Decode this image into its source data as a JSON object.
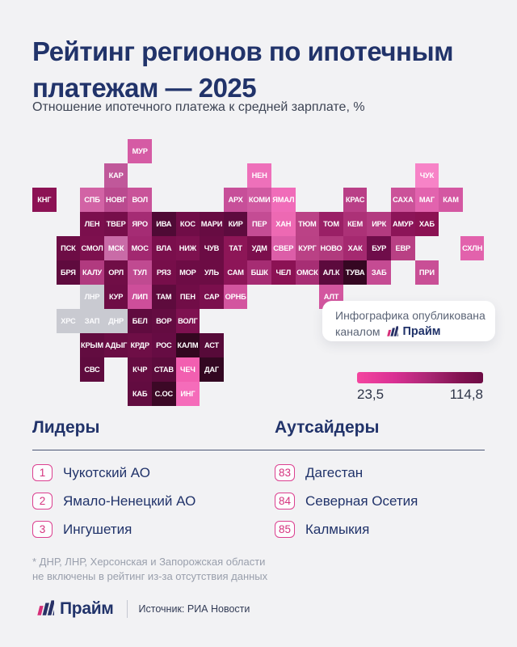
{
  "header": {
    "title_line1": "Рейтинг регионов по ипотечным",
    "title_line2": "платежам — 2025",
    "subtitle": "Отношение ипотечного платежа к средней зарплате, %"
  },
  "publisher": {
    "line1": "Инфографика опубликована",
    "line2_prefix": "каналом",
    "brand": "Прайм"
  },
  "chart_data": {
    "type": "heatmap",
    "title": "Рейтинг регионов по ипотечным платежам — 2025",
    "metric": "Отношение ипотечного платежа к средней зарплате, %",
    "scale": {
      "min": 23.5,
      "max": 114.8,
      "min_label": "23,5",
      "max_label": "114,8",
      "gradient_left": "#f4459f",
      "gradient_right": "#6d0c44"
    },
    "excluded_color": "#c9cad1",
    "tiles": [
      {
        "label": "МУР",
        "row": 0,
        "col": 4,
        "color": "#d55ba4"
      },
      {
        "label": "КАР",
        "row": 1,
        "col": 3,
        "color": "#c0589a"
      },
      {
        "label": "НЕН",
        "row": 1,
        "col": 9,
        "color": "#ee70ba"
      },
      {
        "label": "ЧУК",
        "row": 1,
        "col": 16,
        "color": "#f783c7"
      },
      {
        "label": "КНГ",
        "row": 2,
        "col": 0,
        "color": "#8c1254"
      },
      {
        "label": "СПБ",
        "row": 2,
        "col": 2,
        "color": "#d263a5"
      },
      {
        "label": "НОВГ",
        "row": 2,
        "col": 3,
        "color": "#ba4a8f"
      },
      {
        "label": "ВОЛ",
        "row": 2,
        "col": 4,
        "color": "#c95399"
      },
      {
        "label": "АРХ",
        "row": 2,
        "col": 8,
        "color": "#c74f99"
      },
      {
        "label": "КОМИ",
        "row": 2,
        "col": 9,
        "color": "#d059a1"
      },
      {
        "label": "ЯМАЛ",
        "row": 2,
        "col": 10,
        "color": "#f06cb9"
      },
      {
        "label": "КРАС",
        "row": 2,
        "col": 13,
        "color": "#b93f87"
      },
      {
        "label": "САХА",
        "row": 2,
        "col": 15,
        "color": "#cb5299"
      },
      {
        "label": "МАГ",
        "row": 2,
        "col": 16,
        "color": "#e263ae"
      },
      {
        "label": "КАМ",
        "row": 2,
        "col": 17,
        "color": "#d457a2"
      },
      {
        "label": "ЛЕН",
        "row": 3,
        "col": 2,
        "color": "#7b0f4d"
      },
      {
        "label": "ТВЕР",
        "row": 3,
        "col": 3,
        "color": "#760e4a"
      },
      {
        "label": "ЯРО",
        "row": 3,
        "col": 4,
        "color": "#a52c74"
      },
      {
        "label": "ИВА",
        "row": 3,
        "col": 5,
        "color": "#4f0a35"
      },
      {
        "label": "КОС",
        "row": 3,
        "col": 6,
        "color": "#700d47"
      },
      {
        "label": "МАРИ",
        "row": 3,
        "col": 7,
        "color": "#670c42"
      },
      {
        "label": "КИР",
        "row": 3,
        "col": 8,
        "color": "#5d0b3e"
      },
      {
        "label": "ПЕР",
        "row": 3,
        "col": 9,
        "color": "#c44c94"
      },
      {
        "label": "ХАН",
        "row": 3,
        "col": 10,
        "color": "#ed69b3"
      },
      {
        "label": "ТЮМ",
        "row": 3,
        "col": 11,
        "color": "#bb4286"
      },
      {
        "label": "ТОМ",
        "row": 3,
        "col": 12,
        "color": "#9a2066"
      },
      {
        "label": "КЕМ",
        "row": 3,
        "col": 13,
        "color": "#ac3177"
      },
      {
        "label": "ИРК",
        "row": 3,
        "col": 14,
        "color": "#b33b80"
      },
      {
        "label": "АМУР",
        "row": 3,
        "col": 15,
        "color": "#8c1458"
      },
      {
        "label": "ХАБ",
        "row": 3,
        "col": 16,
        "color": "#8b1253"
      },
      {
        "label": "ПСК",
        "row": 4,
        "col": 1,
        "color": "#6d0d45"
      },
      {
        "label": "СМОЛ",
        "row": 4,
        "col": 2,
        "color": "#7d104e"
      },
      {
        "label": "МСК",
        "row": 4,
        "col": 3,
        "color": "#c96ba7"
      },
      {
        "label": "МОС",
        "row": 4,
        "col": 4,
        "color": "#a22870"
      },
      {
        "label": "ВЛА",
        "row": 4,
        "col": 5,
        "color": "#7a0f4c"
      },
      {
        "label": "НИЖ",
        "row": 4,
        "col": 6,
        "color": "#7e114f"
      },
      {
        "label": "ЧУВ",
        "row": 4,
        "col": 7,
        "color": "#6b0c44"
      },
      {
        "label": "ТАТ",
        "row": 4,
        "col": 8,
        "color": "#8d1657"
      },
      {
        "label": "УДМ",
        "row": 4,
        "col": 9,
        "color": "#7c0f4d"
      },
      {
        "label": "СВЕР",
        "row": 4,
        "col": 10,
        "color": "#dc5ea8"
      },
      {
        "label": "КУРГ",
        "row": 4,
        "col": 11,
        "color": "#ba4185"
      },
      {
        "label": "НОВО",
        "row": 4,
        "col": 12,
        "color": "#b13a7d"
      },
      {
        "label": "ХАК",
        "row": 4,
        "col": 13,
        "color": "#a52970"
      },
      {
        "label": "БУР",
        "row": 4,
        "col": 14,
        "color": "#6f0d4a"
      },
      {
        "label": "ЕВР",
        "row": 4,
        "col": 15,
        "color": "#b94084"
      },
      {
        "label": "СХЛН",
        "row": 4,
        "col": 17.9,
        "color": "#e262ac"
      },
      {
        "label": "БРЯ",
        "row": 5,
        "col": 1,
        "color": "#5f0b3e"
      },
      {
        "label": "КАЛУ",
        "row": 5,
        "col": 2,
        "color": "#b13a7f"
      },
      {
        "label": "ОРЛ",
        "row": 5,
        "col": 3,
        "color": "#700e46"
      },
      {
        "label": "ТУЛ",
        "row": 5,
        "col": 4,
        "color": "#c04a91"
      },
      {
        "label": "РЯЗ",
        "row": 5,
        "col": 5,
        "color": "#770e4a"
      },
      {
        "label": "МОР",
        "row": 5,
        "col": 6,
        "color": "#6d0c45"
      },
      {
        "label": "УЛЬ",
        "row": 5,
        "col": 7,
        "color": "#6c0c44"
      },
      {
        "label": "САМ",
        "row": 5,
        "col": 8,
        "color": "#8d1558"
      },
      {
        "label": "БШК",
        "row": 5,
        "col": 9,
        "color": "#a62c73"
      },
      {
        "label": "ЧЕЛ",
        "row": 5,
        "col": 10,
        "color": "#8b1254"
      },
      {
        "label": "ОМСК",
        "row": 5,
        "col": 11,
        "color": "#a72e74"
      },
      {
        "label": "АЛ.К",
        "row": 5,
        "col": 12,
        "color": "#5c0a3d"
      },
      {
        "label": "ТУВА",
        "row": 5,
        "col": 13,
        "color": "#350722"
      },
      {
        "label": "ЗАБ",
        "row": 5,
        "col": 14,
        "color": "#c54b93"
      },
      {
        "label": "ПРИ",
        "row": 5,
        "col": 16,
        "color": "#c94f96"
      },
      {
        "label": "ЛНР",
        "row": 6,
        "col": 2,
        "color": "#c9cad1",
        "excluded": true
      },
      {
        "label": "КУР",
        "row": 6,
        "col": 3,
        "color": "#6e0d45"
      },
      {
        "label": "ЛИП",
        "row": 6,
        "col": 4,
        "color": "#cd4e9a"
      },
      {
        "label": "ТАМ",
        "row": 6,
        "col": 5,
        "color": "#5e0b3d"
      },
      {
        "label": "ПЕН",
        "row": 6,
        "col": 6,
        "color": "#710d47"
      },
      {
        "label": "САР",
        "row": 6,
        "col": 7,
        "color": "#7b0f4d"
      },
      {
        "label": "ОРНБ",
        "row": 6,
        "col": 8,
        "color": "#d3559f"
      },
      {
        "label": "АЛТ",
        "row": 6,
        "col": 12,
        "color": "#d3569f"
      },
      {
        "label": "ХРС",
        "row": 7,
        "col": 1,
        "color": "#c9cad1",
        "excluded": true
      },
      {
        "label": "ЗАП",
        "row": 7,
        "col": 2,
        "color": "#c9cad1",
        "excluded": true
      },
      {
        "label": "ДНР",
        "row": 7,
        "col": 3,
        "color": "#c9cad1",
        "excluded": true
      },
      {
        "label": "БЕЛ",
        "row": 7,
        "col": 4,
        "color": "#600b3f"
      },
      {
        "label": "ВОР",
        "row": 7,
        "col": 5,
        "color": "#640c41"
      },
      {
        "label": "ВОЛГ",
        "row": 7,
        "col": 6,
        "color": "#7e1150"
      },
      {
        "label": "КРЫМ",
        "row": 8,
        "col": 2,
        "color": "#620c40"
      },
      {
        "label": "АДЫГ",
        "row": 8,
        "col": 3,
        "color": "#6a0d44"
      },
      {
        "label": "КРДР",
        "row": 8,
        "col": 4,
        "color": "#6e0e46"
      },
      {
        "label": "РОС",
        "row": 8,
        "col": 5,
        "color": "#660c43"
      },
      {
        "label": "КАЛМ",
        "row": 8,
        "col": 6,
        "color": "#330720"
      },
      {
        "label": "АСТ",
        "row": 8,
        "col": 7,
        "color": "#570a39"
      },
      {
        "label": "СВС",
        "row": 9,
        "col": 2,
        "color": "#5f0b3e"
      },
      {
        "label": "КЧР",
        "row": 9,
        "col": 4,
        "color": "#650c41"
      },
      {
        "label": "СТАВ",
        "row": 9,
        "col": 5,
        "color": "#5c0b3c"
      },
      {
        "label": "ЧЕЧ",
        "row": 9,
        "col": 6,
        "color": "#f25fb0"
      },
      {
        "label": "ДАГ",
        "row": 9,
        "col": 7,
        "color": "#330721"
      },
      {
        "label": "КАБ",
        "row": 10,
        "col": 4,
        "color": "#620c40"
      },
      {
        "label": "С.ОС",
        "row": 10,
        "col": 5,
        "color": "#3c0826"
      },
      {
        "label": "ИНГ",
        "row": 10,
        "col": 6,
        "color": "#f56cba"
      }
    ]
  },
  "leaders": {
    "title": "Лидеры",
    "items": [
      {
        "rank": "1",
        "name": "Чукотский АО"
      },
      {
        "rank": "2",
        "name": "Ямало-Ненецкий АО"
      },
      {
        "rank": "3",
        "name": "Ингушетия"
      }
    ]
  },
  "outsiders": {
    "title": "Аутсайдеры",
    "items": [
      {
        "rank": "83",
        "name": "Дагестан"
      },
      {
        "rank": "84",
        "name": "Северная Осетия"
      },
      {
        "rank": "85",
        "name": "Калмыкия"
      }
    ]
  },
  "footnote": {
    "line1": "* ДНР, ЛНР, Херсонская и Запорожская области",
    "line2": "не включены в рейтинг из-за отсутствия данных"
  },
  "footer": {
    "brand": "Прайм",
    "source": "Источник: РИА Новости"
  },
  "colors": {
    "background": "#f2f2f4",
    "navy": "#21336a",
    "accent_pink": "#d5337e"
  }
}
